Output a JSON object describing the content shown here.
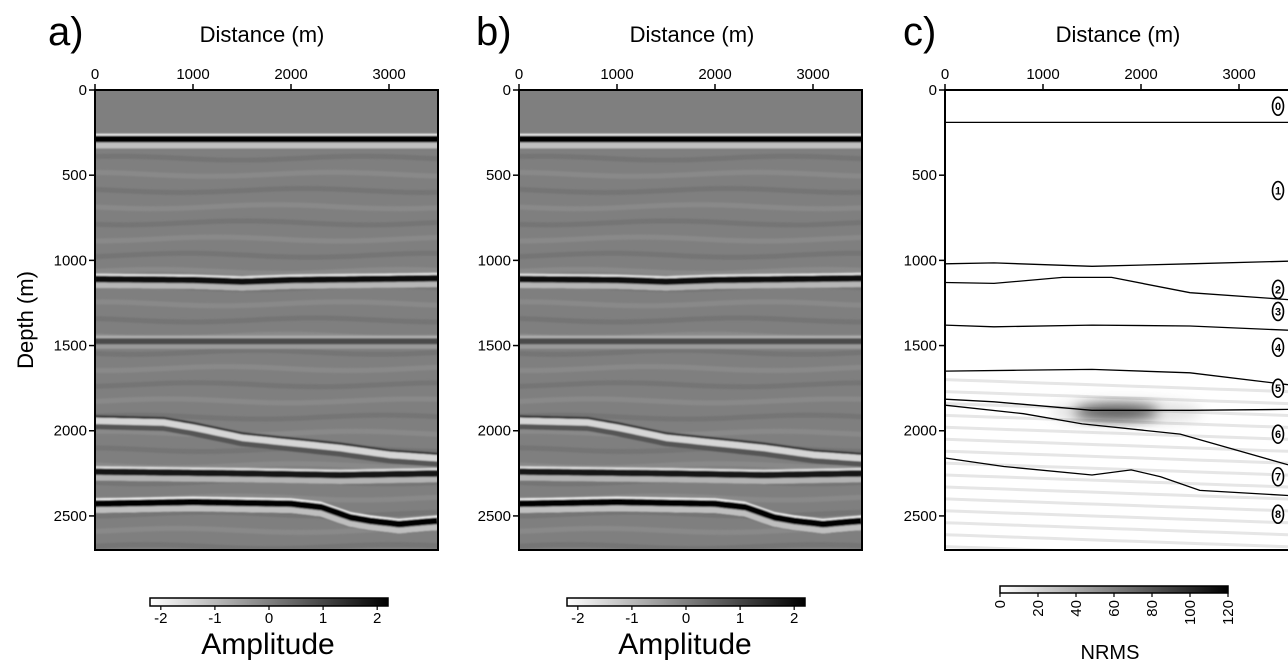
{
  "chart_data": [
    {
      "type": "heatmap",
      "panel_label": "a)",
      "title": "",
      "xlabel": "Distance (m)",
      "ylabel": "Depth (m)",
      "xlim": [
        0,
        3500
      ],
      "ylim": [
        0,
        2700
      ],
      "x_ticks": [
        0,
        1000,
        2000,
        3000
      ],
      "y_ticks": [
        0,
        500,
        1000,
        1500,
        2000,
        2500
      ],
      "colorbar": {
        "label": "Amplitude",
        "range": [
          -2.2,
          2.2
        ],
        "ticks": [
          -2,
          -1,
          0,
          1,
          2
        ],
        "colormap": "white-to-black"
      },
      "reflectors": [
        {
          "x": [
            0,
            3500
          ],
          "depth": [
            300,
            300
          ],
          "polarity": 1,
          "strength": 2.2
        },
        {
          "x": [
            0,
            1000,
            1500,
            2000,
            3500
          ],
          "depth": [
            1120,
            1125,
            1135,
            1125,
            1115
          ],
          "polarity": 1,
          "strength": 1.9
        },
        {
          "x": [
            0,
            3500
          ],
          "depth": [
            1480,
            1480
          ],
          "polarity": 1,
          "strength": 0.9
        },
        {
          "x": [
            0,
            700,
            1000,
            1500,
            2000,
            2500,
            3000,
            3500
          ],
          "depth": [
            1950,
            1960,
            1990,
            2050,
            2080,
            2110,
            2150,
            2170
          ],
          "polarity": -1,
          "strength": 1.5
        },
        {
          "x": [
            0,
            1500,
            2500,
            3500
          ],
          "depth": [
            2250,
            2260,
            2270,
            2260
          ],
          "polarity": 1,
          "strength": 1.8
        },
        {
          "x": [
            0,
            1000,
            2000,
            2300,
            2600,
            2800,
            3100,
            3500
          ],
          "depth": [
            2440,
            2430,
            2440,
            2460,
            2520,
            2540,
            2560,
            2540
          ],
          "polarity": 1,
          "strength": 2.2
        }
      ]
    },
    {
      "type": "heatmap",
      "panel_label": "b)",
      "title": "",
      "xlabel": "Distance (m)",
      "ylabel": "",
      "xlim": [
        0,
        3500
      ],
      "ylim": [
        0,
        2700
      ],
      "x_ticks": [
        0,
        1000,
        2000,
        3000
      ],
      "y_ticks": [
        0,
        500,
        1000,
        1500,
        2000,
        2500
      ],
      "colorbar": {
        "label": "Amplitude",
        "range": [
          -2.2,
          2.2
        ],
        "ticks": [
          -2,
          -1,
          0,
          1,
          2
        ],
        "colormap": "white-to-black"
      },
      "reflectors": [
        {
          "x": [
            0,
            3500
          ],
          "depth": [
            300,
            300
          ],
          "polarity": 1,
          "strength": 2.2
        },
        {
          "x": [
            0,
            1000,
            1500,
            2000,
            3500
          ],
          "depth": [
            1120,
            1125,
            1135,
            1125,
            1115
          ],
          "polarity": 1,
          "strength": 1.9
        },
        {
          "x": [
            0,
            3500
          ],
          "depth": [
            1480,
            1480
          ],
          "polarity": 1,
          "strength": 0.9
        },
        {
          "x": [
            0,
            700,
            1000,
            1500,
            2000,
            2500,
            3000,
            3500
          ],
          "depth": [
            1950,
            1960,
            1990,
            2050,
            2080,
            2110,
            2150,
            2170
          ],
          "polarity": -1,
          "strength": 1.5
        },
        {
          "x": [
            0,
            1500,
            2500,
            3500
          ],
          "depth": [
            2250,
            2260,
            2270,
            2260
          ],
          "polarity": 1,
          "strength": 1.8
        },
        {
          "x": [
            0,
            1000,
            2000,
            2300,
            2600,
            2800,
            3100,
            3500
          ],
          "depth": [
            2440,
            2430,
            2440,
            2460,
            2520,
            2540,
            2560,
            2540
          ],
          "polarity": 1,
          "strength": 2.2
        }
      ]
    },
    {
      "type": "heatmap",
      "panel_label": "c)",
      "title": "",
      "xlabel": "Distance (m)",
      "ylabel": "",
      "xlim": [
        0,
        3500
      ],
      "ylim": [
        0,
        2700
      ],
      "x_ticks": [
        0,
        1000,
        2000,
        3000
      ],
      "y_ticks": [
        0,
        500,
        1000,
        1500,
        2000,
        2500
      ],
      "colorbar": {
        "label": "NRMS",
        "range": [
          0,
          120
        ],
        "ticks": [
          0,
          20,
          40,
          60,
          80,
          100,
          120
        ],
        "colormap": "white-to-black"
      },
      "boundaries": [
        {
          "x": [
            0,
            3500
          ],
          "depth": [
            190,
            190
          ]
        },
        {
          "x": [
            0,
            500,
            1500,
            2500,
            3500
          ],
          "depth": [
            1020,
            1015,
            1035,
            1020,
            1005
          ]
        },
        {
          "x": [
            0,
            500,
            1200,
            1700,
            2500,
            3500
          ],
          "depth": [
            1130,
            1135,
            1100,
            1100,
            1190,
            1230
          ]
        },
        {
          "x": [
            0,
            500,
            1500,
            2500,
            3500
          ],
          "depth": [
            1380,
            1390,
            1380,
            1385,
            1410
          ]
        },
        {
          "x": [
            0,
            700,
            1500,
            2500,
            3500
          ],
          "depth": [
            1650,
            1645,
            1640,
            1660,
            1730
          ]
        },
        {
          "x": [
            0,
            500,
            1500,
            2500,
            3500
          ],
          "depth": [
            1815,
            1830,
            1880,
            1880,
            1875
          ]
        },
        {
          "x": [
            0,
            800,
            1400,
            2400,
            3500
          ],
          "depth": [
            1850,
            1900,
            1960,
            2020,
            2200
          ]
        },
        {
          "x": [
            0,
            600,
            1500,
            1900,
            2200,
            2600,
            3500
          ],
          "depth": [
            2160,
            2210,
            2260,
            2230,
            2270,
            2350,
            2380
          ]
        }
      ],
      "layer_labels": [
        {
          "label": "0",
          "depth": 95
        },
        {
          "label": "1",
          "depth": 590
        },
        {
          "label": "2",
          "depth": 1170
        },
        {
          "label": "3",
          "depth": 1300
        },
        {
          "label": "4",
          "depth": 1510
        },
        {
          "label": "5",
          "depth": 1750
        },
        {
          "label": "6",
          "depth": 2020
        },
        {
          "label": "7",
          "depth": 2270
        },
        {
          "label": "8",
          "depth": 2490
        }
      ],
      "anomaly": {
        "x_center": 1750,
        "depth_center": 1890,
        "x_halfwidth": 430,
        "depth_halfwidth": 45,
        "peak_nrms": 120
      }
    }
  ]
}
